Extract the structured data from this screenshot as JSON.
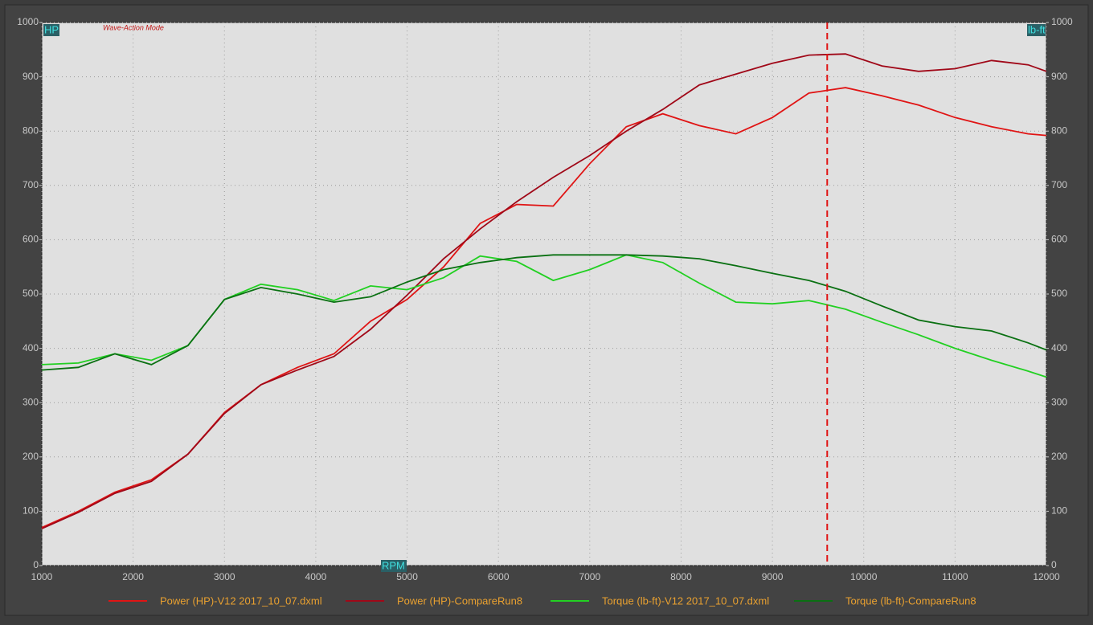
{
  "chart_data": {
    "type": "line",
    "mode_label": "Wave-Action Mode",
    "y_label": "HP",
    "y2_label": "lb-ft",
    "x_label": "RPM",
    "x": [
      1000,
      1400,
      1800,
      2200,
      2600,
      3000,
      3400,
      3800,
      4200,
      4600,
      5000,
      5400,
      5800,
      6200,
      6600,
      7000,
      7400,
      7800,
      8200,
      8600,
      9000,
      9400,
      9800,
      10200,
      10600,
      11000,
      11400,
      11800,
      12000
    ],
    "series": [
      {
        "name": "Power (HP)-V12 2017_10_07.dxml",
        "color": "#e01414",
        "axis": "y",
        "values": [
          70,
          100,
          135,
          158,
          205,
          282,
          333,
          365,
          390,
          450,
          490,
          550,
          630,
          665,
          662,
          740,
          808,
          832,
          810,
          795,
          825,
          870,
          880,
          865,
          848,
          825,
          808,
          795,
          792
        ]
      },
      {
        "name": "Power (HP)-CompareRun8",
        "color": "#a00818",
        "axis": "y",
        "values": [
          68,
          98,
          133,
          155,
          205,
          280,
          333,
          360,
          385,
          435,
          498,
          565,
          620,
          670,
          715,
          755,
          800,
          840,
          885,
          905,
          925,
          940,
          942,
          920,
          910,
          915,
          930,
          922,
          910
        ]
      },
      {
        "name": "Torque (lb-ft)-V12 2017_10_07.dxml",
        "color": "#22d022",
        "axis": "y2",
        "values": [
          370,
          373,
          390,
          378,
          405,
          490,
          518,
          508,
          488,
          515,
          508,
          530,
          570,
          560,
          525,
          545,
          572,
          558,
          520,
          485,
          482,
          488,
          472,
          448,
          425,
          400,
          378,
          358,
          347
        ]
      },
      {
        "name": "Torque (lb-ft)-CompareRun8",
        "color": "#0a7012",
        "axis": "y2",
        "values": [
          360,
          365,
          390,
          370,
          405,
          490,
          512,
          500,
          485,
          495,
          522,
          545,
          558,
          567,
          572,
          572,
          572,
          570,
          565,
          552,
          538,
          525,
          505,
          478,
          452,
          440,
          432,
          410,
          397
        ]
      }
    ],
    "cursor_x": 9600,
    "xlim": [
      1000,
      12000
    ],
    "xticks": [
      1000,
      2000,
      3000,
      4000,
      5000,
      6000,
      7000,
      8000,
      9000,
      10000,
      11000,
      12000
    ],
    "ylim": [
      0,
      1000
    ],
    "yticks": [
      0,
      100,
      200,
      300,
      400,
      500,
      600,
      700,
      800,
      900,
      1000
    ],
    "y2lim": [
      0,
      1000
    ],
    "y2ticks": [
      0,
      100,
      200,
      300,
      400,
      500,
      600,
      700,
      800,
      900,
      1000
    ],
    "grid": true
  }
}
